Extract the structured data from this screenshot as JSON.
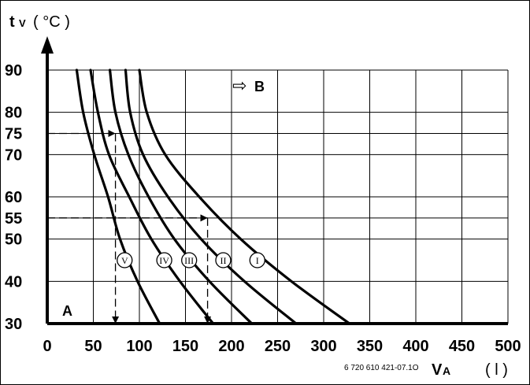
{
  "chart_data": {
    "type": "line",
    "y_axis_label": "t",
    "y_axis_label_sub": "V",
    "y_axis_unit": "( °C )",
    "x_axis_label": "V",
    "x_axis_label_sub": "A",
    "x_axis_unit": "( l )",
    "ref_code": "6 720 610 421-07.1O",
    "region_a": "A",
    "region_b": "B",
    "region_b_arrow": "⇨",
    "xlim": [
      0,
      500
    ],
    "ylim": [
      30,
      90
    ],
    "x_ticks": [
      "0",
      "50",
      "100",
      "150",
      "200",
      "250",
      "300",
      "350",
      "400",
      "450",
      "500"
    ],
    "x_tick_values": [
      0,
      50,
      100,
      150,
      200,
      250,
      300,
      350,
      400,
      450,
      500
    ],
    "y_ticks": [
      "30",
      "40",
      "50",
      "55",
      "60",
      "70",
      "75",
      "80",
      "90"
    ],
    "y_tick_values": [
      30,
      40,
      50,
      55,
      60,
      70,
      75,
      80,
      90
    ],
    "grid": true,
    "series": [
      {
        "name": "I",
        "label_at": [
          228,
          45
        ],
        "points": [
          [
            100,
            90
          ],
          [
            108,
            80
          ],
          [
            128,
            70
          ],
          [
            165,
            60
          ],
          [
            210,
            50
          ],
          [
            265,
            40
          ],
          [
            328,
            30
          ]
        ]
      },
      {
        "name": "II",
        "label_at": [
          191,
          45
        ],
        "points": [
          [
            85,
            90
          ],
          [
            90,
            80
          ],
          [
            104,
            70
          ],
          [
            131,
            60
          ],
          [
            167,
            50
          ],
          [
            214,
            40
          ],
          [
            270,
            30
          ]
        ]
      },
      {
        "name": "III",
        "label_at": [
          154,
          45
        ],
        "points": [
          [
            68,
            90
          ],
          [
            74,
            80
          ],
          [
            88,
            70
          ],
          [
            110,
            60
          ],
          [
            138,
            50
          ],
          [
            176,
            40
          ],
          [
            222,
            30
          ]
        ]
      },
      {
        "name": "IV",
        "label_at": [
          127,
          45
        ],
        "points": [
          [
            47,
            90
          ],
          [
            55,
            80
          ],
          [
            67,
            70
          ],
          [
            89,
            60
          ],
          [
            113,
            50
          ],
          [
            144,
            40
          ],
          [
            180,
            30
          ]
        ]
      },
      {
        "name": "V",
        "label_at": [
          84,
          45
        ],
        "points": [
          [
            32,
            90
          ],
          [
            39,
            80
          ],
          [
            51,
            70
          ],
          [
            66,
            60
          ],
          [
            79,
            50
          ],
          [
            98,
            40
          ],
          [
            122,
            30
          ]
        ]
      }
    ],
    "dashed_guides": [
      {
        "from": [
          0,
          75
        ],
        "to": [
          74,
          75
        ],
        "down_to": [
          74,
          30
        ]
      },
      {
        "from": [
          0,
          55
        ],
        "to": [
          174,
          55
        ],
        "down_to": [
          174,
          30
        ]
      }
    ]
  }
}
